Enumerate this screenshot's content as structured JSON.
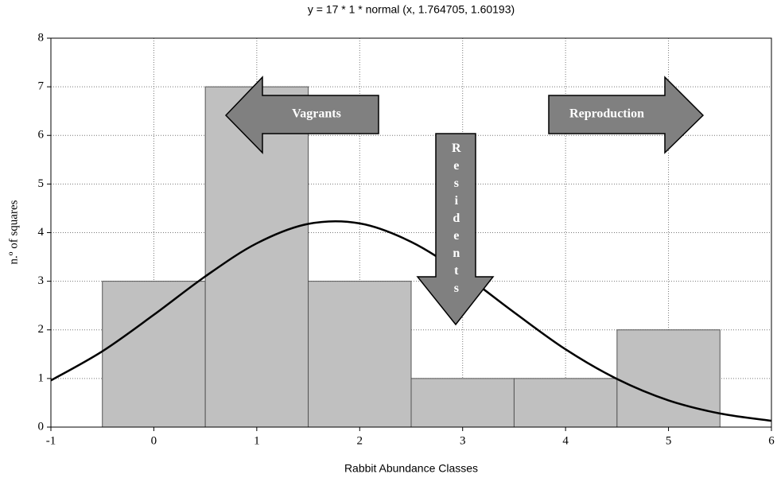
{
  "chart_data": {
    "type": "histogram",
    "title": "y = 17 * 1 * normal (x, 1.764705, 1.60193)",
    "x_label": "Rabbit Abundance Classes",
    "y_label": "n.º of squares",
    "bins": [
      -0.5,
      0.5,
      1.5,
      2.5,
      3.5,
      4.5,
      5.5
    ],
    "values": [
      3,
      7,
      3,
      1,
      1,
      2
    ],
    "color": "#c0c0c0",
    "curve": {
      "x": [
        -1,
        -0.5,
        0,
        0.5,
        1,
        1.5,
        2,
        2.5,
        3,
        3.5,
        4,
        4.5,
        5,
        5.5,
        6
      ],
      "values": [
        0.96,
        1.56,
        2.31,
        3.1,
        3.78,
        4.18,
        4.19,
        3.81,
        3.15,
        2.36,
        1.6,
        0.99,
        0.55,
        0.28,
        0.13
      ],
      "color": "#000000"
    },
    "annotations": [
      "Vagrants",
      "Residents",
      "Reproduction"
    ],
    "xlim": [
      -1,
      6
    ],
    "xticks": [
      -1,
      0,
      1,
      2,
      3,
      4,
      5,
      6
    ],
    "ylim": [
      0,
      8
    ],
    "yticks": [
      0,
      1,
      2,
      3,
      4,
      5,
      6,
      7,
      8
    ],
    "grid": true
  }
}
